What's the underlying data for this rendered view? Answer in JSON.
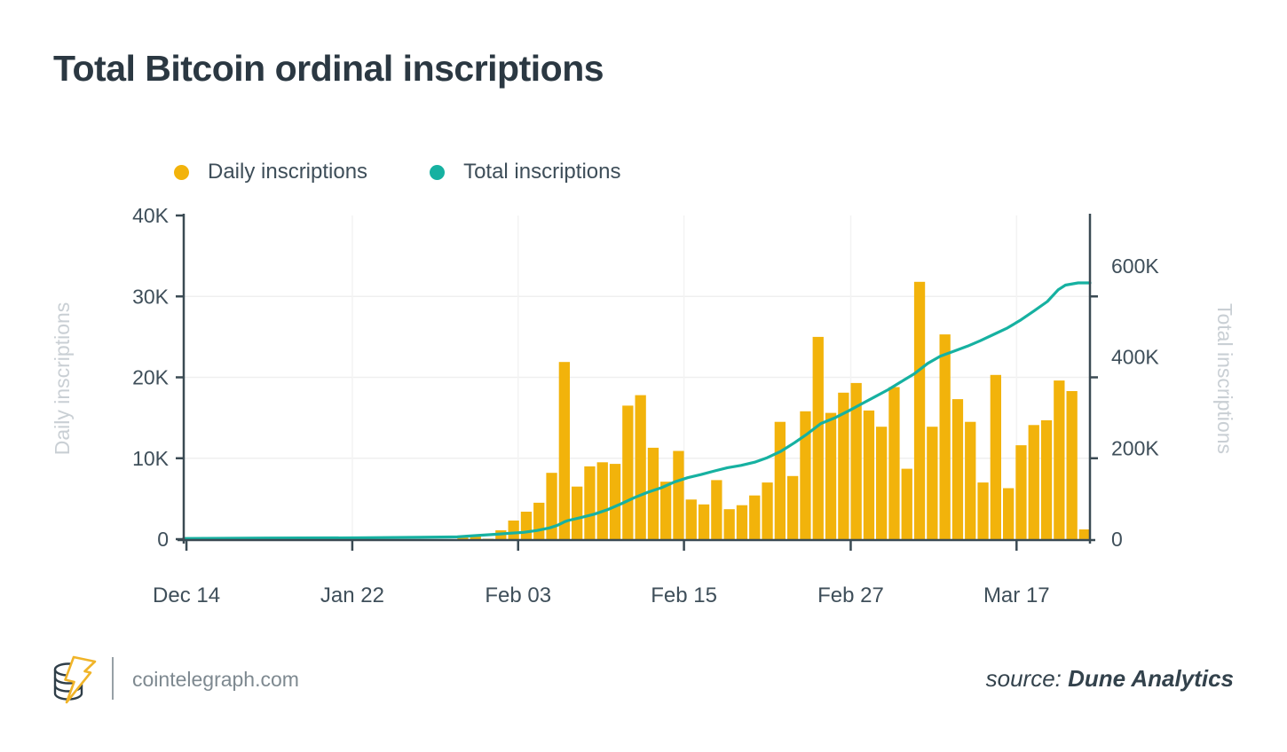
{
  "title": "Total Bitcoin ordinal inscriptions",
  "legend": {
    "items": [
      {
        "label": "Daily inscriptions",
        "color": "#F2B30B"
      },
      {
        "label": "Total inscriptions",
        "color": "#16B1A1"
      }
    ]
  },
  "footer": {
    "site": "cointelegraph.com",
    "source_prefix": "source:",
    "source_name": "Dune Analytics"
  },
  "colors": {
    "bar_yellow": "#F2B30B",
    "line_teal": "#16B1A1",
    "axis": "#3A4A53",
    "tick_label": "#3F4F5A",
    "axis_title": "#C9CFD4",
    "grid": "#EFEFEF",
    "title_text": "#2B3842"
  },
  "chart_data": {
    "type": "bar",
    "subtype": "bar+line combo, dual y-axis",
    "title": "Total Bitcoin ordinal inscriptions",
    "xlabel": "",
    "x_axis": {
      "labels": [
        "Dec 14",
        "Jan 22",
        "Feb 03",
        "Feb 15",
        "Feb 27",
        "Mar 17"
      ],
      "positions": [
        0.003,
        0.186,
        0.369,
        0.552,
        0.736,
        0.919
      ],
      "grid": true
    },
    "left_axis": {
      "label": "Daily inscriptions",
      "ticks": [
        {
          "label": "0",
          "value": 0
        },
        {
          "label": "10K",
          "value": 10000
        },
        {
          "label": "20K",
          "value": 20000
        },
        {
          "label": "30K",
          "value": 30000
        },
        {
          "label": "40K",
          "value": 40000
        }
      ],
      "range": [
        0,
        40000
      ],
      "grid_values": [
        10000,
        20000,
        30000
      ]
    },
    "right_axis": {
      "label": "Total inscriptions",
      "ticks": [
        {
          "label": "0",
          "value": 0
        },
        {
          "label": "200K",
          "value": 200000
        },
        {
          "label": "400K",
          "value": 400000
        },
        {
          "label": "600K",
          "value": 600000
        }
      ],
      "range": [
        0,
        711000
      ],
      "tick_mark_rows": [
        10000,
        20000,
        30000
      ]
    },
    "series": [
      {
        "name": "Daily inscriptions",
        "type": "bar",
        "axis": "left",
        "color": "#F2B30B",
        "start_frac": 0.302,
        "pitch_frac": 0.014,
        "bar_width_frac": 0.012,
        "values": [
          300,
          550,
          50,
          1100,
          2300,
          3400,
          4500,
          8200,
          21900,
          6500,
          9000,
          9500,
          9300,
          16500,
          17800,
          11300,
          7100,
          10900,
          4900,
          4300,
          7300,
          3700,
          4200,
          5400,
          7000,
          14500,
          7800,
          15800,
          25000,
          15600,
          18100,
          19300,
          15900,
          13900,
          18800,
          8700,
          31800,
          13900,
          25300,
          17300,
          14500,
          7000,
          20300,
          6300,
          11600,
          14100,
          14700,
          19600,
          18300,
          1200
        ]
      },
      {
        "name": "Total inscriptions",
        "type": "line",
        "axis": "right",
        "color": "#16B1A1",
        "points": [
          [
            0.0,
            1500
          ],
          [
            0.09,
            2500
          ],
          [
            0.19,
            3000
          ],
          [
            0.26,
            4000
          ],
          [
            0.302,
            5000
          ],
          [
            0.316,
            7000
          ],
          [
            0.331,
            9000
          ],
          [
            0.346,
            11000
          ],
          [
            0.36,
            13000
          ],
          [
            0.375,
            15000
          ],
          [
            0.39,
            19000
          ],
          [
            0.404,
            25000
          ],
          [
            0.413,
            31000
          ],
          [
            0.42,
            38000
          ],
          [
            0.424,
            41000
          ],
          [
            0.439,
            48000
          ],
          [
            0.453,
            55000
          ],
          [
            0.468,
            65000
          ],
          [
            0.483,
            78000
          ],
          [
            0.498,
            92000
          ],
          [
            0.512,
            103000
          ],
          [
            0.527,
            113000
          ],
          [
            0.542,
            126000
          ],
          [
            0.556,
            135000
          ],
          [
            0.571,
            142000
          ],
          [
            0.586,
            150000
          ],
          [
            0.6,
            157000
          ],
          [
            0.615,
            162000
          ],
          [
            0.63,
            169000
          ],
          [
            0.644,
            179000
          ],
          [
            0.659,
            193000
          ],
          [
            0.674,
            212000
          ],
          [
            0.688,
            231000
          ],
          [
            0.703,
            254000
          ],
          [
            0.718,
            266000
          ],
          [
            0.733,
            281000
          ],
          [
            0.747,
            296000
          ],
          [
            0.762,
            312000
          ],
          [
            0.777,
            328000
          ],
          [
            0.791,
            345000
          ],
          [
            0.806,
            363000
          ],
          [
            0.821,
            386000
          ],
          [
            0.835,
            402000
          ],
          [
            0.85,
            413000
          ],
          [
            0.865,
            424000
          ],
          [
            0.879,
            436000
          ],
          [
            0.894,
            450000
          ],
          [
            0.909,
            464000
          ],
          [
            0.924,
            482000
          ],
          [
            0.938,
            501000
          ],
          [
            0.953,
            522000
          ],
          [
            0.965,
            548000
          ],
          [
            0.973,
            558000
          ],
          [
            0.987,
            563000
          ],
          [
            1.0,
            563000
          ]
        ]
      }
    ]
  }
}
